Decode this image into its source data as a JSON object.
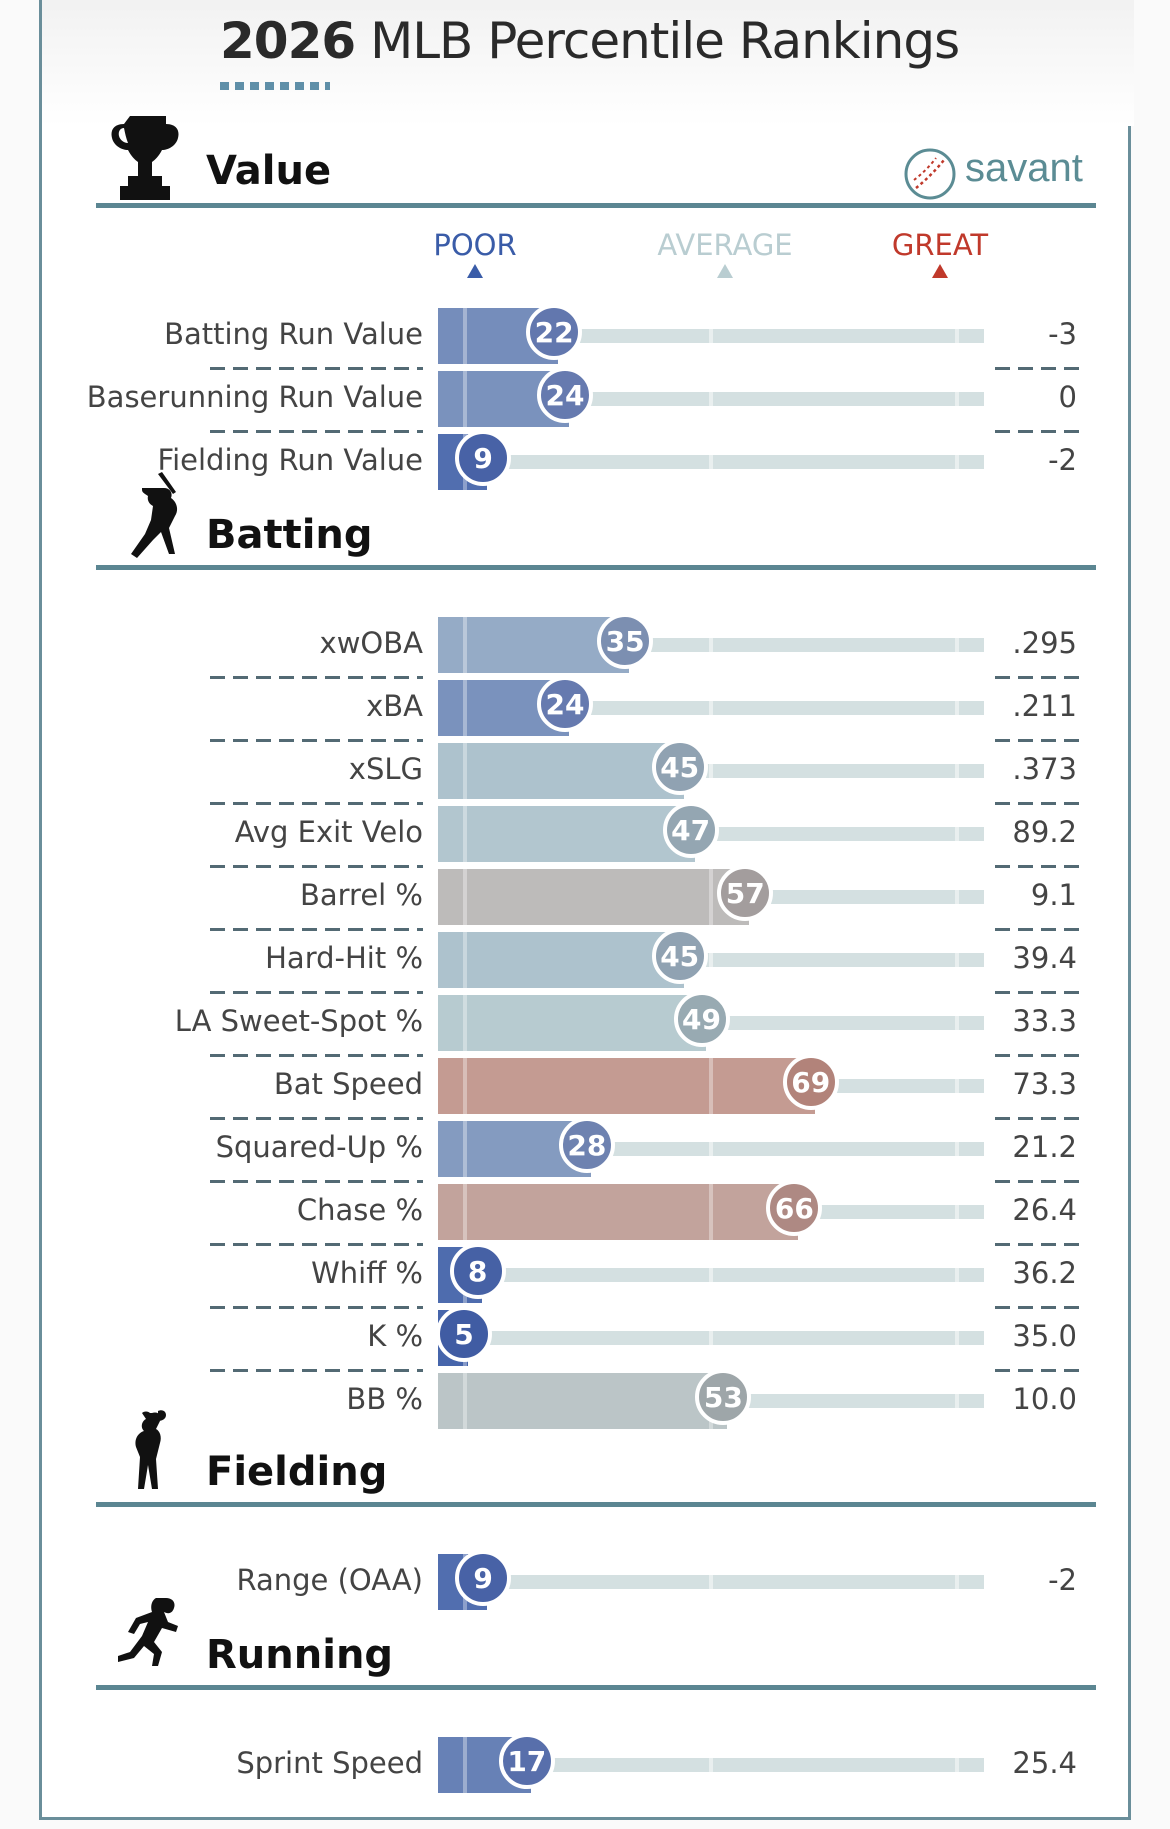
{
  "header": {
    "title_year": "2026",
    "title_rest": " MLB Percentile Rankings"
  },
  "brand": {
    "name": "savant"
  },
  "legend": {
    "poor": "POOR",
    "average": "AVERAGE",
    "great": "GREAT",
    "colors": {
      "poor": "#3a5ca8",
      "average": "#b9cdd1",
      "great": "#c0392b"
    }
  },
  "chart_data": {
    "type": "bar",
    "xlim": [
      0,
      100
    ],
    "sections": [
      {
        "title": "Value",
        "icon": "trophy-icon",
        "metrics": [
          {
            "label": "Batting Run Value",
            "percentile": 22,
            "value": "-3"
          },
          {
            "label": "Baserunning Run Value",
            "percentile": 24,
            "value": "0"
          },
          {
            "label": "Fielding Run Value",
            "percentile": 9,
            "value": "-2"
          }
        ]
      },
      {
        "title": "Batting",
        "icon": "batter-icon",
        "metrics": [
          {
            "label": "xwOBA",
            "percentile": 35,
            "value": ".295"
          },
          {
            "label": "xBA",
            "percentile": 24,
            "value": ".211"
          },
          {
            "label": "xSLG",
            "percentile": 45,
            "value": ".373"
          },
          {
            "label": "Avg Exit Velo",
            "percentile": 47,
            "value": "89.2"
          },
          {
            "label": "Barrel %",
            "percentile": 57,
            "value": "9.1"
          },
          {
            "label": "Hard-Hit %",
            "percentile": 45,
            "value": "39.4"
          },
          {
            "label": "LA Sweet-Spot %",
            "percentile": 49,
            "value": "33.3"
          },
          {
            "label": "Bat Speed",
            "percentile": 69,
            "value": "73.3"
          },
          {
            "label": "Squared-Up %",
            "percentile": 28,
            "value": "21.2"
          },
          {
            "label": "Chase %",
            "percentile": 66,
            "value": "26.4"
          },
          {
            "label": "Whiff %",
            "percentile": 8,
            "value": "36.2"
          },
          {
            "label": "K %",
            "percentile": 5,
            "value": "35.0"
          },
          {
            "label": "BB %",
            "percentile": 53,
            "value": "10.0"
          }
        ]
      },
      {
        "title": "Fielding",
        "icon": "fielder-icon",
        "metrics": [
          {
            "label": "Range (OAA)",
            "percentile": 9,
            "value": "-2"
          }
        ]
      },
      {
        "title": "Running",
        "icon": "runner-icon",
        "metrics": [
          {
            "label": "Sprint Speed",
            "percentile": 17,
            "value": "25.4"
          }
        ]
      }
    ]
  }
}
